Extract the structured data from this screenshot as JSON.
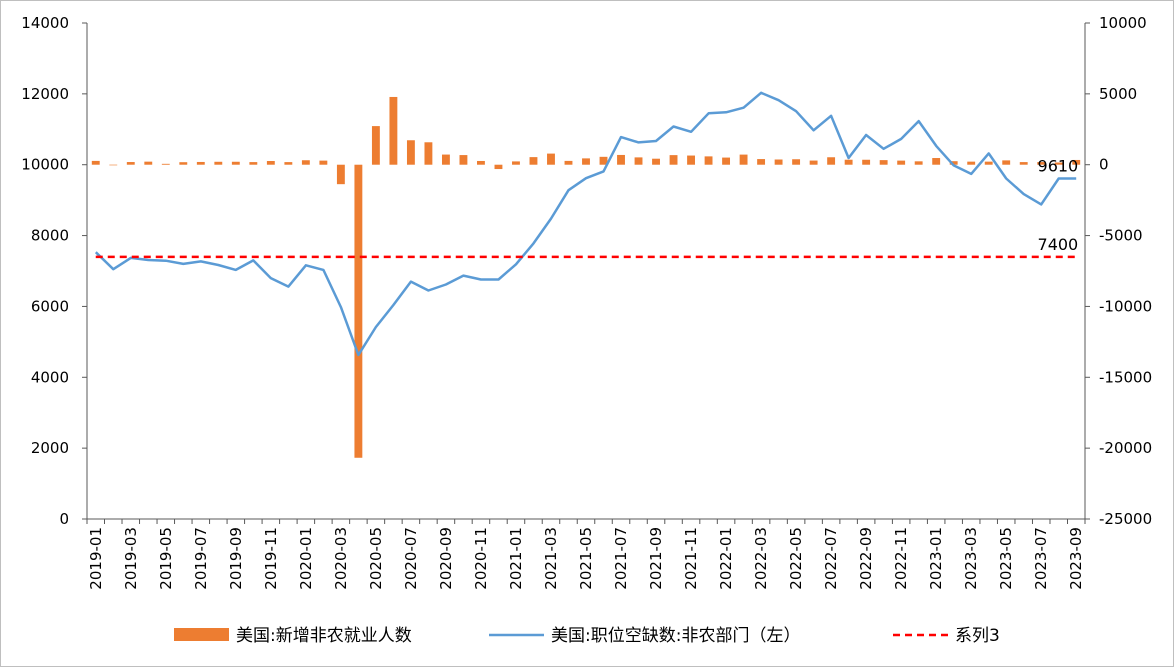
{
  "chart_data": {
    "type": "bar+line",
    "title": "",
    "x": [
      "2019-01",
      "2019-02",
      "2019-03",
      "2019-04",
      "2019-05",
      "2019-06",
      "2019-07",
      "2019-08",
      "2019-09",
      "2019-10",
      "2019-11",
      "2019-12",
      "2020-01",
      "2020-02",
      "2020-03",
      "2020-04",
      "2020-05",
      "2020-06",
      "2020-07",
      "2020-08",
      "2020-09",
      "2020-10",
      "2020-11",
      "2020-12",
      "2021-01",
      "2021-02",
      "2021-03",
      "2021-04",
      "2021-05",
      "2021-06",
      "2021-07",
      "2021-08",
      "2021-09",
      "2021-10",
      "2021-11",
      "2021-12",
      "2022-01",
      "2022-02",
      "2022-03",
      "2022-04",
      "2022-05",
      "2022-06",
      "2022-07",
      "2022-08",
      "2022-09",
      "2022-10",
      "2022-11",
      "2022-12",
      "2023-01",
      "2023-02",
      "2023-03",
      "2023-04",
      "2023-05",
      "2023-06",
      "2023-07",
      "2023-08",
      "2023-09"
    ],
    "x_tick_labels": [
      "2019-01",
      "2019-03",
      "2019-05",
      "2019-07",
      "2019-09",
      "2019-11",
      "2020-01",
      "2020-03",
      "2020-05",
      "2020-07",
      "2020-09",
      "2020-11",
      "2021-01",
      "2021-03",
      "2021-05",
      "2021-07",
      "2021-09",
      "2021-11",
      "2022-01",
      "2022-03",
      "2022-05",
      "2022-07",
      "2022-09",
      "2022-11",
      "2023-01",
      "2023-03",
      "2023-05",
      "2023-07",
      "2023-09"
    ],
    "left_axis": {
      "min": 0,
      "max": 14000,
      "step": 2000,
      "ticks": [
        "0",
        "2000",
        "4000",
        "6000",
        "8000",
        "10000",
        "12000",
        "14000"
      ]
    },
    "right_axis": {
      "min": -25000,
      "max": 10000,
      "step": 5000,
      "ticks": [
        "-25000",
        "-20000",
        "-15000",
        "-10000",
        "-5000",
        "0",
        "5000",
        "10000"
      ]
    },
    "series": [
      {
        "name": "美国:新增非农就业人数",
        "kind": "bar",
        "axis": "right",
        "color": "#ed7d31",
        "values": [
          269,
          1,
          189,
          216,
          62,
          178,
          194,
          207,
          208,
          185,
          261,
          184,
          315,
          289,
          -1373,
          -20679,
          2725,
          4781,
          1726,
          1583,
          716,
          680,
          264,
          -306,
          233,
          536,
          785,
          269,
          447,
          557,
          689,
          517,
          424,
          677,
          647,
          588,
          504,
          714,
          398,
          368,
          386,
          293,
          526,
          352,
          350,
          324,
          290,
          239,
          472,
          248,
          217,
          217,
          306,
          185,
          187,
          157,
          336
        ]
      },
      {
        "name": "美国:职位空缺数:非农部门（左）",
        "kind": "line",
        "axis": "left",
        "color": "#5b9bd5",
        "values": [
          7530,
          7050,
          7370,
          7310,
          7290,
          7200,
          7270,
          7170,
          7030,
          7300,
          6800,
          6560,
          7160,
          7030,
          5980,
          4630,
          5420,
          6040,
          6700,
          6450,
          6620,
          6870,
          6760,
          6760,
          7190,
          7780,
          8480,
          9280,
          9620,
          9810,
          10780,
          10630,
          10670,
          11080,
          10930,
          11450,
          11480,
          11610,
          12030,
          11820,
          11510,
          10970,
          11380,
          10190,
          10840,
          10450,
          10730,
          11230,
          10530,
          9980,
          9740,
          10320,
          9610,
          9170,
          8880,
          9610,
          9610
        ]
      },
      {
        "name": "系列3",
        "kind": "line-dashed",
        "axis": "left",
        "color": "#ff0000",
        "constant": 7400
      }
    ],
    "annotations": [
      {
        "text": "9610",
        "x": "2023-09",
        "axis": "left",
        "y": 9610
      },
      {
        "text": "7400",
        "x": "2023-09",
        "axis": "left",
        "y": 7400
      }
    ],
    "legend": {
      "position": "bottom"
    },
    "grid": false
  }
}
